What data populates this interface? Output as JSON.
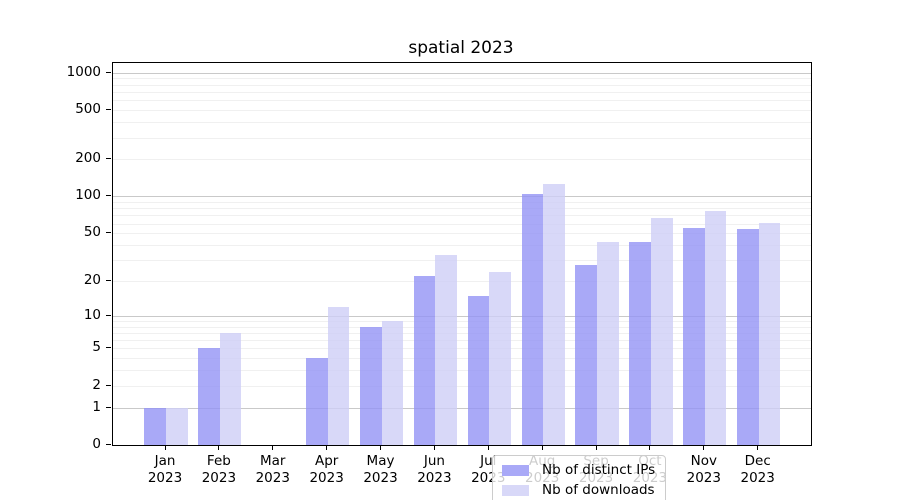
{
  "title": "spatial 2023",
  "chart_data": {
    "type": "bar",
    "title": "spatial 2023",
    "xlabel": "",
    "ylabel": "",
    "scale": "log1p (symlog-like: position proportional to log10(1+v))",
    "ylim": [
      0,
      1200
    ],
    "grid": true,
    "legend_position": "inside lower-center",
    "categories": [
      "Jan 2023",
      "Feb 2023",
      "Mar 2023",
      "Apr 2023",
      "May 2023",
      "Jun 2023",
      "Jul 2023",
      "Aug 2023",
      "Sep 2023",
      "Oct 2023",
      "Nov 2023",
      "Dec 2023"
    ],
    "months": [
      "Jan",
      "Feb",
      "Mar",
      "Apr",
      "May",
      "Jun",
      "Jul",
      "Aug",
      "Sep",
      "Oct",
      "Nov",
      "Dec"
    ],
    "year": "2023",
    "y_tick_values": [
      0,
      1,
      2,
      5,
      10,
      20,
      50,
      100,
      200,
      500,
      1000
    ],
    "y_tick_labels": [
      "0",
      "1",
      "2",
      "5",
      "10",
      "20",
      "50",
      "100",
      "200",
      "500",
      "1000"
    ],
    "series": [
      {
        "name": "Nb of distinct IPs",
        "color": "#a9a9f7",
        "color_rgba": "rgba(148,148,245,0.8)",
        "values": [
          1,
          5,
          0,
          4,
          8,
          22,
          15,
          104,
          27,
          42,
          55,
          54
        ]
      },
      {
        "name": "Nb of downloads",
        "color": "#d8d8f8",
        "color_rgba": "rgba(206,206,246,0.8)",
        "values": [
          1,
          7,
          0,
          12,
          9,
          33,
          24,
          125,
          42,
          66,
          76,
          61
        ]
      }
    ],
    "gridline_colors": {
      "major": "#c9c9c9",
      "minor": "#f0f0f0"
    },
    "major_grid_values": [
      1,
      10,
      100,
      1000
    ]
  }
}
